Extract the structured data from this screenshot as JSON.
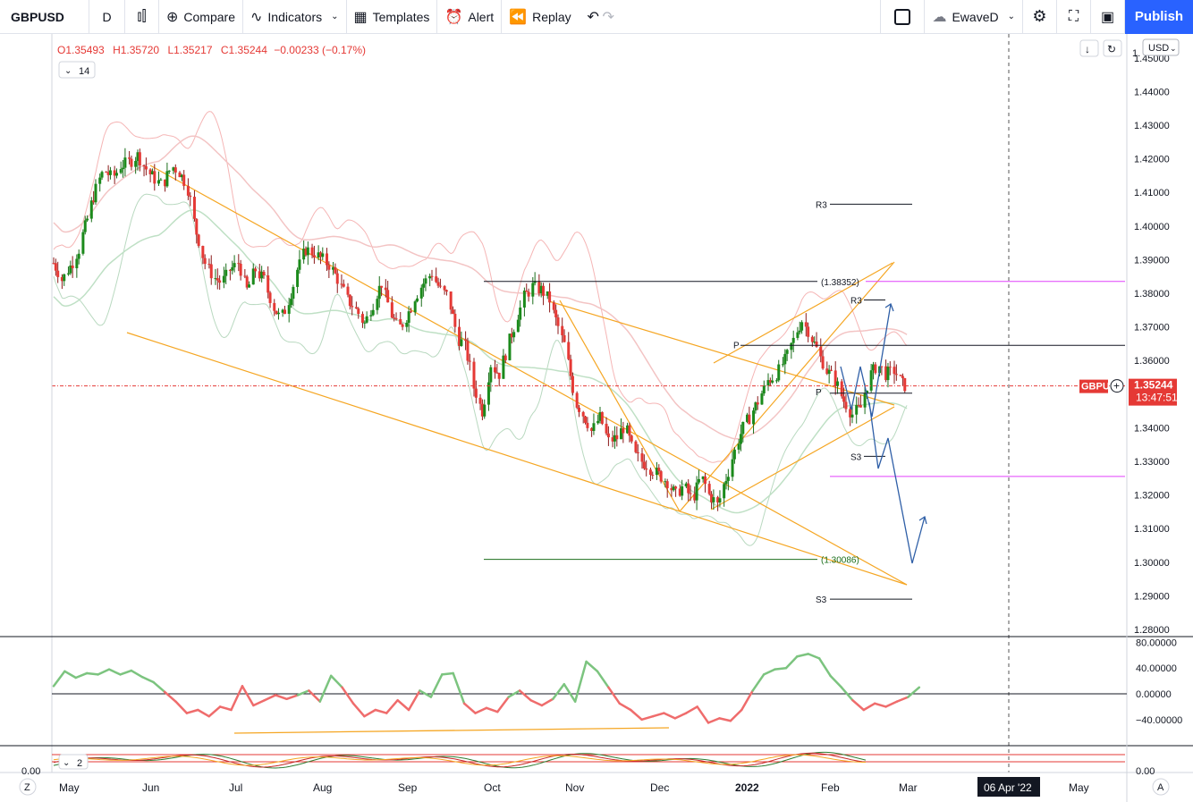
{
  "toolbar": {
    "symbol": "GBPUSD",
    "interval": "D",
    "compare": "Compare",
    "indicators": "Indicators",
    "templates": "Templates",
    "alert": "Alert",
    "replay": "Replay",
    "layout_name": "EwaveD",
    "publish": "Publish"
  },
  "legend": {
    "o": "O1.35493",
    "h": "H1.35720",
    "l": "L1.35217",
    "c": "C1.35244",
    "chg": "−0.00233 (−0.17%)",
    "indicator_param": "14",
    "oscillator_param": "2"
  },
  "price_axis": {
    "currency": "USD",
    "labels": [
      "1.45000",
      "1.44000",
      "1.43000",
      "1.42000",
      "1.41000",
      "1.40000",
      "1.39000",
      "1.38000",
      "1.37000",
      "1.36000",
      "1.35000",
      "1.34000",
      "1.33000",
      "1.32000",
      "1.31000",
      "1.30000",
      "1.29000",
      "1.28000"
    ],
    "values": [
      1.45,
      1.44,
      1.43,
      1.42,
      1.41,
      1.4,
      1.39,
      1.38,
      1.37,
      1.36,
      1.35,
      1.34,
      1.33,
      1.32,
      1.31,
      1.3,
      1.29,
      1.28
    ],
    "top_partial": "1.",
    "last_price": "1.35244",
    "last_symbol": "GBPU",
    "countdown": "13:47:51"
  },
  "rsi_axis": {
    "labels": [
      "80.00000",
      "40.00000",
      "0.00000",
      "−40.00000"
    ],
    "values": [
      80,
      40,
      0,
      -40
    ]
  },
  "osc_axis": {
    "left": "0.00",
    "right": "0.00"
  },
  "time_axis": {
    "labels": [
      "May",
      "Jun",
      "Jul",
      "Aug",
      "Sep",
      "Oct",
      "Nov",
      "Dec",
      "2022",
      "Feb",
      "Mar",
      "May"
    ],
    "cursor_date": "06 Apr '22",
    "left_btn": "Z",
    "right_btn": "A"
  },
  "levels": {
    "r3_upper": "R3",
    "r3_lower": "R3",
    "s3_upper": "S3",
    "s3_lower": "S3",
    "pivot_a": "P",
    "pivot_b": "P",
    "fib_high": "(1.38352)",
    "fib_low": "(1.30086)"
  },
  "colors": {
    "up": "#26a69a",
    "up_body": "#1b8a1b",
    "down": "#e53935",
    "trend": "#f5a623",
    "projection": "#2f5fa7",
    "magenta": "#e040fb",
    "accent": "#2962ff"
  },
  "chart_data": {
    "type": "candlestick",
    "symbol": "GBPUSD",
    "timeframe": "D",
    "y_range": [
      1.28,
      1.455
    ],
    "x_months": [
      "May",
      "Jun",
      "Jul",
      "Aug",
      "Sep",
      "Oct",
      "Nov",
      "Dec",
      "2022",
      "Feb",
      "Mar",
      "May"
    ],
    "close_path": [
      [
        0,
        1.389
      ],
      [
        4,
        1.384
      ],
      [
        8,
        1.388
      ],
      [
        12,
        1.393
      ],
      [
        16,
        1.402
      ],
      [
        20,
        1.411
      ],
      [
        24,
        1.417
      ],
      [
        28,
        1.414
      ],
      [
        32,
        1.418
      ],
      [
        36,
        1.419
      ],
      [
        40,
        1.421
      ],
      [
        44,
        1.417
      ],
      [
        48,
        1.414
      ],
      [
        52,
        1.412
      ],
      [
        56,
        1.418
      ],
      [
        60,
        1.416
      ],
      [
        64,
        1.411
      ],
      [
        68,
        1.398
      ],
      [
        72,
        1.389
      ],
      [
        76,
        1.385
      ],
      [
        80,
        1.383
      ],
      [
        84,
        1.387
      ],
      [
        88,
        1.389
      ],
      [
        92,
        1.381
      ],
      [
        96,
        1.387
      ],
      [
        100,
        1.384
      ],
      [
        104,
        1.377
      ],
      [
        108,
        1.372
      ],
      [
        112,
        1.378
      ],
      [
        116,
        1.387
      ],
      [
        120,
        1.393
      ],
      [
        124,
        1.392
      ],
      [
        128,
        1.39
      ],
      [
        132,
        1.388
      ],
      [
        136,
        1.383
      ],
      [
        140,
        1.378
      ],
      [
        144,
        1.375
      ],
      [
        148,
        1.371
      ],
      [
        152,
        1.377
      ],
      [
        156,
        1.383
      ],
      [
        160,
        1.375
      ],
      [
        164,
        1.369
      ],
      [
        168,
        1.373
      ],
      [
        172,
        1.379
      ],
      [
        176,
        1.383
      ],
      [
        180,
        1.386
      ],
      [
        184,
        1.381
      ],
      [
        188,
        1.379
      ],
      [
        192,
        1.367
      ],
      [
        196,
        1.364
      ],
      [
        200,
        1.352
      ],
      [
        204,
        1.345
      ],
      [
        208,
        1.359
      ],
      [
        212,
        1.356
      ],
      [
        216,
        1.364
      ],
      [
        220,
        1.372
      ],
      [
        224,
        1.379
      ],
      [
        228,
        1.382
      ],
      [
        232,
        1.381
      ],
      [
        236,
        1.378
      ],
      [
        240,
        1.37
      ],
      [
        244,
        1.363
      ],
      [
        248,
        1.348
      ],
      [
        252,
        1.344
      ],
      [
        256,
        1.339
      ],
      [
        260,
        1.343
      ],
      [
        264,
        1.336
      ],
      [
        268,
        1.337
      ],
      [
        272,
        1.341
      ],
      [
        276,
        1.332
      ],
      [
        280,
        1.33
      ],
      [
        284,
        1.328
      ],
      [
        288,
        1.326
      ],
      [
        292,
        1.324
      ],
      [
        296,
        1.32
      ],
      [
        300,
        1.323
      ],
      [
        304,
        1.318
      ],
      [
        308,
        1.326
      ],
      [
        312,
        1.32
      ],
      [
        316,
        1.317
      ],
      [
        320,
        1.325
      ],
      [
        324,
        1.333
      ],
      [
        328,
        1.34
      ],
      [
        332,
        1.344
      ],
      [
        336,
        1.349
      ],
      [
        340,
        1.354
      ],
      [
        344,
        1.356
      ],
      [
        348,
        1.36
      ],
      [
        352,
        1.366
      ],
      [
        356,
        1.372
      ],
      [
        360,
        1.368
      ],
      [
        364,
        1.362
      ],
      [
        368,
        1.357
      ],
      [
        372,
        1.354
      ],
      [
        376,
        1.348
      ],
      [
        380,
        1.344
      ],
      [
        384,
        1.346
      ],
      [
        388,
        1.355
      ],
      [
        392,
        1.359
      ],
      [
        396,
        1.356
      ],
      [
        400,
        1.357
      ],
      [
        404,
        1.353
      ],
      [
        406,
        1.352
      ]
    ],
    "rsi_path": [
      [
        0,
        12
      ],
      [
        6,
        35
      ],
      [
        12,
        25
      ],
      [
        18,
        32
      ],
      [
        24,
        30
      ],
      [
        30,
        38
      ],
      [
        36,
        30
      ],
      [
        42,
        36
      ],
      [
        48,
        26
      ],
      [
        54,
        18
      ],
      [
        60,
        3
      ],
      [
        66,
        -12
      ],
      [
        72,
        -30
      ],
      [
        78,
        -25
      ],
      [
        84,
        -35
      ],
      [
        90,
        -20
      ],
      [
        96,
        -25
      ],
      [
        102,
        12
      ],
      [
        108,
        -18
      ],
      [
        114,
        -10
      ],
      [
        120,
        -2
      ],
      [
        126,
        -8
      ],
      [
        132,
        -2
      ],
      [
        138,
        5
      ],
      [
        144,
        -12
      ],
      [
        150,
        28
      ],
      [
        156,
        10
      ],
      [
        162,
        -15
      ],
      [
        168,
        -35
      ],
      [
        174,
        -25
      ],
      [
        180,
        -30
      ],
      [
        186,
        -10
      ],
      [
        192,
        -25
      ],
      [
        198,
        5
      ],
      [
        204,
        -5
      ],
      [
        210,
        30
      ],
      [
        216,
        32
      ],
      [
        222,
        -15
      ],
      [
        228,
        -30
      ],
      [
        234,
        -22
      ],
      [
        240,
        -28
      ],
      [
        246,
        -5
      ],
      [
        252,
        5
      ],
      [
        258,
        -10
      ],
      [
        264,
        -18
      ],
      [
        270,
        -8
      ],
      [
        276,
        15
      ],
      [
        282,
        -12
      ],
      [
        288,
        50
      ],
      [
        294,
        35
      ],
      [
        300,
        10
      ],
      [
        306,
        -15
      ],
      [
        312,
        -25
      ],
      [
        318,
        -40
      ],
      [
        324,
        -35
      ],
      [
        330,
        -30
      ],
      [
        336,
        -38
      ],
      [
        342,
        -30
      ],
      [
        348,
        -20
      ],
      [
        354,
        -45
      ],
      [
        360,
        -38
      ],
      [
        366,
        -42
      ],
      [
        372,
        -25
      ],
      [
        378,
        5
      ],
      [
        384,
        30
      ],
      [
        390,
        38
      ],
      [
        396,
        40
      ],
      [
        402,
        58
      ],
      [
        408,
        62
      ],
      [
        414,
        55
      ],
      [
        420,
        28
      ],
      [
        426,
        10
      ],
      [
        432,
        -10
      ],
      [
        438,
        -25
      ],
      [
        444,
        -15
      ],
      [
        450,
        -20
      ],
      [
        456,
        -12
      ],
      [
        462,
        -5
      ],
      [
        468,
        10
      ]
    ],
    "r3_upper": 1.4065,
    "r3_lower": 1.378,
    "s3_upper": 1.3315,
    "s3_lower": 1.289,
    "pivot_a": 1.3645,
    "pivot_b": 1.35,
    "fib_high": 1.38352,
    "fib_low": 1.30086,
    "last_price": 1.35244
  }
}
